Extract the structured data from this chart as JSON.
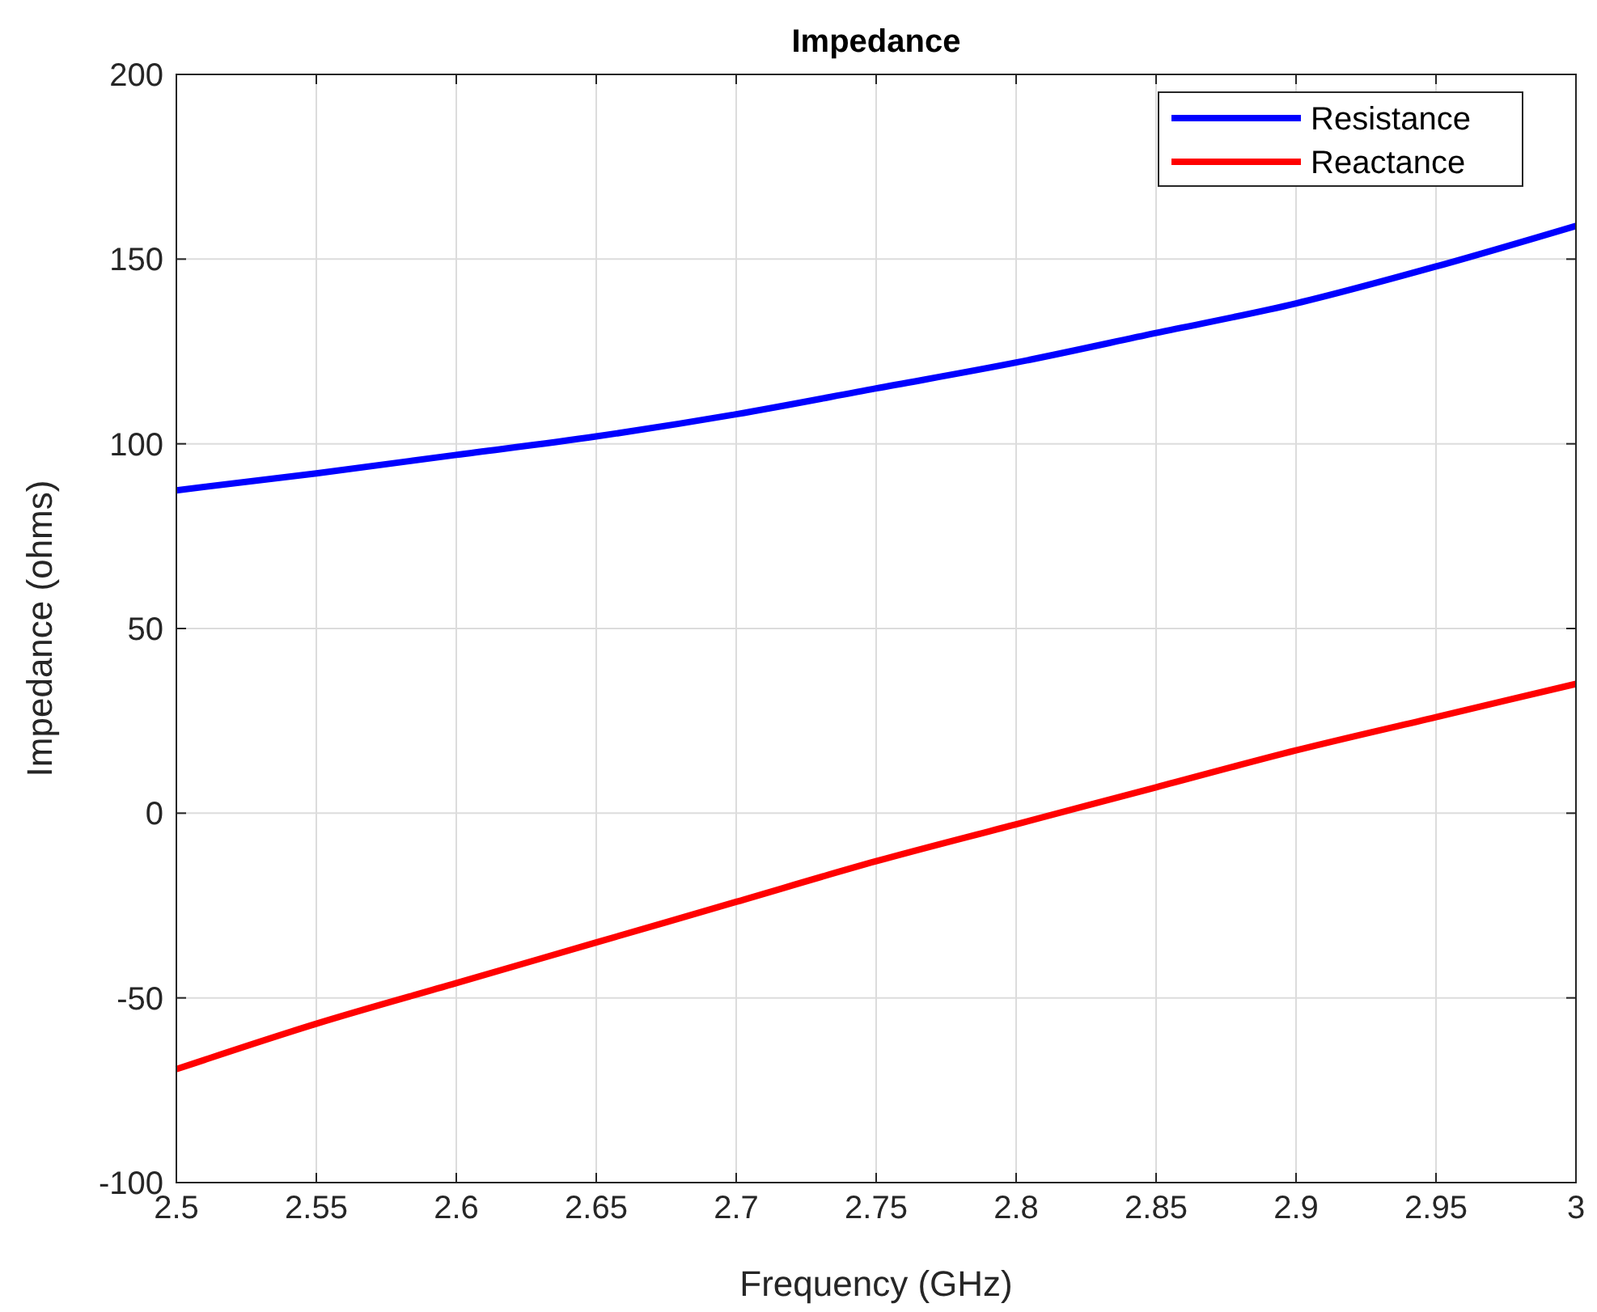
{
  "chart_data": {
    "type": "line",
    "title": "Impedance",
    "xlabel": "Frequency (GHz)",
    "ylabel": "Impedance (ohms)",
    "x": [
      2.5,
      2.55,
      2.6,
      2.65,
      2.7,
      2.75,
      2.8,
      2.85,
      2.9,
      2.95,
      3
    ],
    "series": [
      {
        "name": "Resistance",
        "color": "#0000ff",
        "values": [
          87.4,
          92,
          97,
          102,
          108,
          115,
          122,
          130,
          138,
          148,
          159
        ]
      },
      {
        "name": "Reactance",
        "color": "#ff0000",
        "values": [
          -69.3,
          -57,
          -46,
          -35,
          -24,
          -13,
          -3,
          7,
          17,
          26,
          35
        ]
      }
    ],
    "xlim": [
      2.5,
      3
    ],
    "xticks": [
      2.5,
      2.55,
      2.6,
      2.65,
      2.7,
      2.75,
      2.8,
      2.85,
      2.9,
      2.95,
      3
    ],
    "ylim": [
      -100,
      200
    ],
    "yticks": [
      -100,
      -50,
      0,
      50,
      100,
      150,
      200
    ],
    "grid": true,
    "legend": "top right",
    "marker": "none",
    "line_style": "solid"
  }
}
